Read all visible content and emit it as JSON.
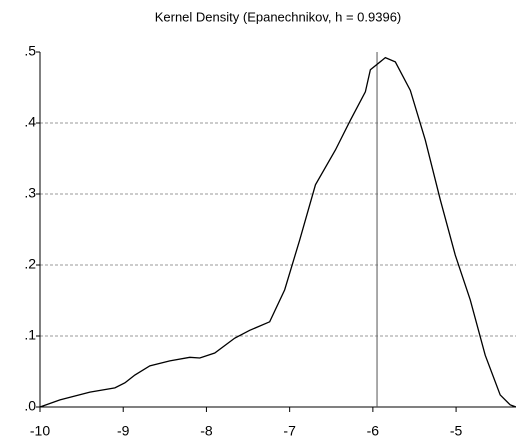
{
  "chart_data": {
    "type": "line",
    "title": "Kernel Density (Epanechnikov, h = 0.9396)",
    "x": [
      -10,
      -9.76,
      -9.4,
      -9.1,
      -8.98,
      -8.86,
      -8.68,
      -8.44,
      -8.2,
      -8.08,
      -7.9,
      -7.66,
      -7.48,
      -7.24,
      -7.06,
      -6.88,
      -6.69,
      -6.45,
      -6.27,
      -6.09,
      -6.03,
      -5.85,
      -5.73,
      -5.55,
      -5.37,
      -5.19,
      -5.01,
      -4.83,
      -4.65,
      -4.47,
      -4.35,
      -4.28
    ],
    "series": [
      {
        "color": "#000000",
        "values": [
          0,
          0.01,
          0.021,
          0.027,
          0.034,
          0.045,
          0.058,
          0.065,
          0.07,
          0.069,
          0.076,
          0.097,
          0.108,
          0.12,
          0.165,
          0.235,
          0.313,
          0.362,
          0.404,
          0.444,
          0.475,
          0.492,
          0.486,
          0.446,
          0.376,
          0.292,
          0.214,
          0.151,
          0.073,
          0.017,
          0.003,
          0
        ]
      }
    ],
    "xlim": [
      -10,
      -4.28
    ],
    "ylim": [
      0,
      0.5
    ],
    "xticks": [
      -10,
      -9,
      -8,
      -7,
      -6,
      -5
    ],
    "yticks": [
      {
        "value": 0,
        "label": ".0"
      },
      {
        "value": 0.1,
        "label": ".1"
      },
      {
        "value": 0.2,
        "label": ".2"
      },
      {
        "value": 0.3,
        "label": ".3"
      },
      {
        "value": 0.4,
        "label": ".4"
      },
      {
        "value": 0.5,
        "label": ".5"
      }
    ],
    "grid": true,
    "vline": -5.95
  }
}
